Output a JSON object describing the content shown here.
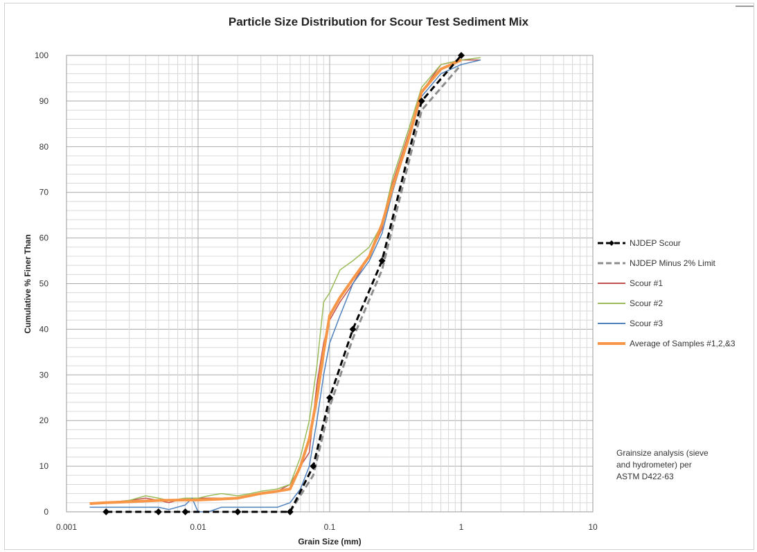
{
  "chart_data": {
    "type": "line",
    "title": "Particle Size Distribution for Scour Test Sediment Mix",
    "xlabel": "Grain Size (mm)",
    "ylabel": "Cumulative % Finer Than",
    "x_scale": "log",
    "xlim": [
      0.001,
      10
    ],
    "ylim": [
      0,
      100
    ],
    "x_ticks": [
      "0.001",
      "0.01",
      "0.1",
      "1",
      "10"
    ],
    "y_ticks": [
      "0",
      "10",
      "20",
      "30",
      "40",
      "50",
      "60",
      "70",
      "80",
      "90",
      "100"
    ],
    "grid": true,
    "legend_position": "right",
    "annotation": "Grainsize analysis (sieve\nand hydrometer) per\nASTM D422-63",
    "series": [
      {
        "name": "NJDEP Scour",
        "color": "#000000",
        "style": "dashed",
        "marker": "diamond",
        "x": [
          0.002,
          0.005,
          0.008,
          0.02,
          0.05,
          0.075,
          0.1,
          0.15,
          0.25,
          0.5,
          1.0
        ],
        "y": [
          0,
          0,
          0,
          0,
          0,
          10,
          25,
          40,
          55,
          90,
          100
        ]
      },
      {
        "name": "NJDEP Minus 2% Limit",
        "color": "#8c8c8c",
        "style": "dashed",
        "x": [
          0.05,
          0.075,
          0.1,
          0.15,
          0.25,
          0.5,
          1.0
        ],
        "y": [
          0,
          8,
          23,
          38,
          53,
          88,
          98
        ]
      },
      {
        "name": "Scour #1",
        "color": "#c0504d",
        "style": "solid",
        "x": [
          0.0015,
          0.002,
          0.003,
          0.004,
          0.005,
          0.006,
          0.008,
          0.01,
          0.012,
          0.015,
          0.02,
          0.025,
          0.03,
          0.04,
          0.05,
          0.06,
          0.07,
          0.08,
          0.09,
          0.1,
          0.12,
          0.15,
          0.2,
          0.25,
          0.3,
          0.4,
          0.5,
          0.7,
          1.0,
          1.4
        ],
        "y": [
          2,
          2,
          2.5,
          3,
          2.5,
          2,
          3,
          3,
          3,
          3,
          3,
          3.5,
          4,
          4.5,
          6,
          10,
          13,
          28,
          37,
          42,
          46,
          50,
          56,
          62,
          72,
          83,
          92,
          98,
          99,
          99
        ]
      },
      {
        "name": "Scour #2",
        "color": "#9bbb59",
        "style": "solid",
        "x": [
          0.0015,
          0.002,
          0.003,
          0.004,
          0.005,
          0.006,
          0.008,
          0.01,
          0.012,
          0.015,
          0.02,
          0.025,
          0.03,
          0.04,
          0.05,
          0.06,
          0.07,
          0.08,
          0.09,
          0.1,
          0.12,
          0.15,
          0.2,
          0.25,
          0.3,
          0.4,
          0.5,
          0.7,
          1.0,
          1.4
        ],
        "y": [
          2,
          2,
          2.5,
          3.5,
          3,
          2.5,
          3,
          3,
          3.5,
          4,
          3.5,
          4,
          4.5,
          5,
          6,
          12,
          20,
          32,
          46,
          48,
          53,
          55,
          58,
          63,
          73,
          84,
          93,
          98,
          99,
          99.5
        ]
      },
      {
        "name": "Scour #3",
        "color": "#4f81bd",
        "style": "solid",
        "x": [
          0.0015,
          0.002,
          0.003,
          0.004,
          0.005,
          0.006,
          0.008,
          0.009,
          0.01,
          0.012,
          0.015,
          0.02,
          0.025,
          0.03,
          0.04,
          0.05,
          0.06,
          0.07,
          0.08,
          0.09,
          0.1,
          0.12,
          0.15,
          0.2,
          0.25,
          0.3,
          0.4,
          0.5,
          0.7,
          1.0,
          1.4
        ],
        "y": [
          1,
          1,
          1,
          1,
          1,
          0.5,
          1.5,
          3,
          0,
          0,
          1,
          1,
          1,
          1,
          1,
          2,
          5,
          10,
          20,
          30,
          37,
          43,
          50,
          55,
          61,
          70,
          82,
          91,
          96,
          98,
          99
        ]
      },
      {
        "name": "Average of Samples #1,2,&3",
        "color": "#f79646",
        "style": "solid",
        "width": 4,
        "x": [
          0.0015,
          0.002,
          0.003,
          0.005,
          0.008,
          0.01,
          0.015,
          0.02,
          0.03,
          0.04,
          0.05,
          0.06,
          0.07,
          0.08,
          0.09,
          0.1,
          0.12,
          0.15,
          0.2,
          0.25,
          0.3,
          0.4,
          0.5,
          0.7,
          1.0
        ],
        "y": [
          1.8,
          2,
          2.2,
          2.5,
          2.6,
          2.6,
          2.8,
          3,
          4,
          4.5,
          5,
          10,
          16,
          25,
          35,
          43,
          47,
          51,
          56,
          63,
          71,
          82,
          92,
          97,
          99
        ]
      }
    ]
  }
}
